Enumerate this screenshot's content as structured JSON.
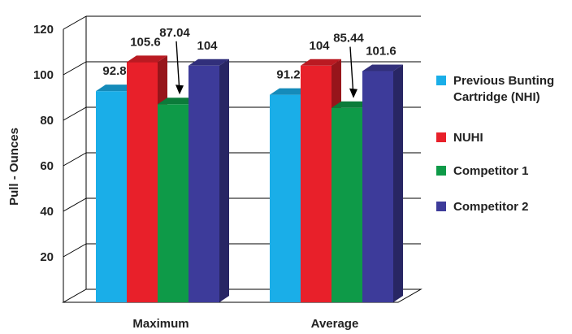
{
  "chart_data": {
    "type": "bar",
    "title": "",
    "xlabel": "",
    "ylabel": "Pull - Ounces",
    "ylim": [
      0,
      120
    ],
    "yticks": [
      "20",
      "40",
      "60",
      "80",
      "100",
      "120"
    ],
    "categories": [
      "Maximum",
      "Average"
    ],
    "series": [
      {
        "name": "Previous Bunting Cartridge (NHI)",
        "values": [
          92.8,
          91.2
        ],
        "labels": [
          "92.8",
          "91.2"
        ],
        "color": "#1aaee8"
      },
      {
        "name": "NUHI",
        "values": [
          105.6,
          104
        ],
        "labels": [
          "105.6",
          "104"
        ],
        "color": "#e8202a"
      },
      {
        "name": "Competitor 1",
        "values": [
          87.04,
          85.44
        ],
        "labels": [
          "87.04",
          "85.44"
        ],
        "color": "#0e9a48"
      },
      {
        "name": "Competitor 2",
        "values": [
          104,
          101.6
        ],
        "labels": [
          "104",
          "101.6"
        ],
        "color": "#3d3b9a"
      }
    ],
    "legend": {
      "position": "right",
      "entries": [
        [
          "Previous Bunting",
          "Cartridge (NHI)"
        ],
        [
          "NUHI"
        ],
        [
          "Competitor 1"
        ],
        [
          "Competitor 2"
        ]
      ]
    },
    "grid": true,
    "style": "3d"
  }
}
